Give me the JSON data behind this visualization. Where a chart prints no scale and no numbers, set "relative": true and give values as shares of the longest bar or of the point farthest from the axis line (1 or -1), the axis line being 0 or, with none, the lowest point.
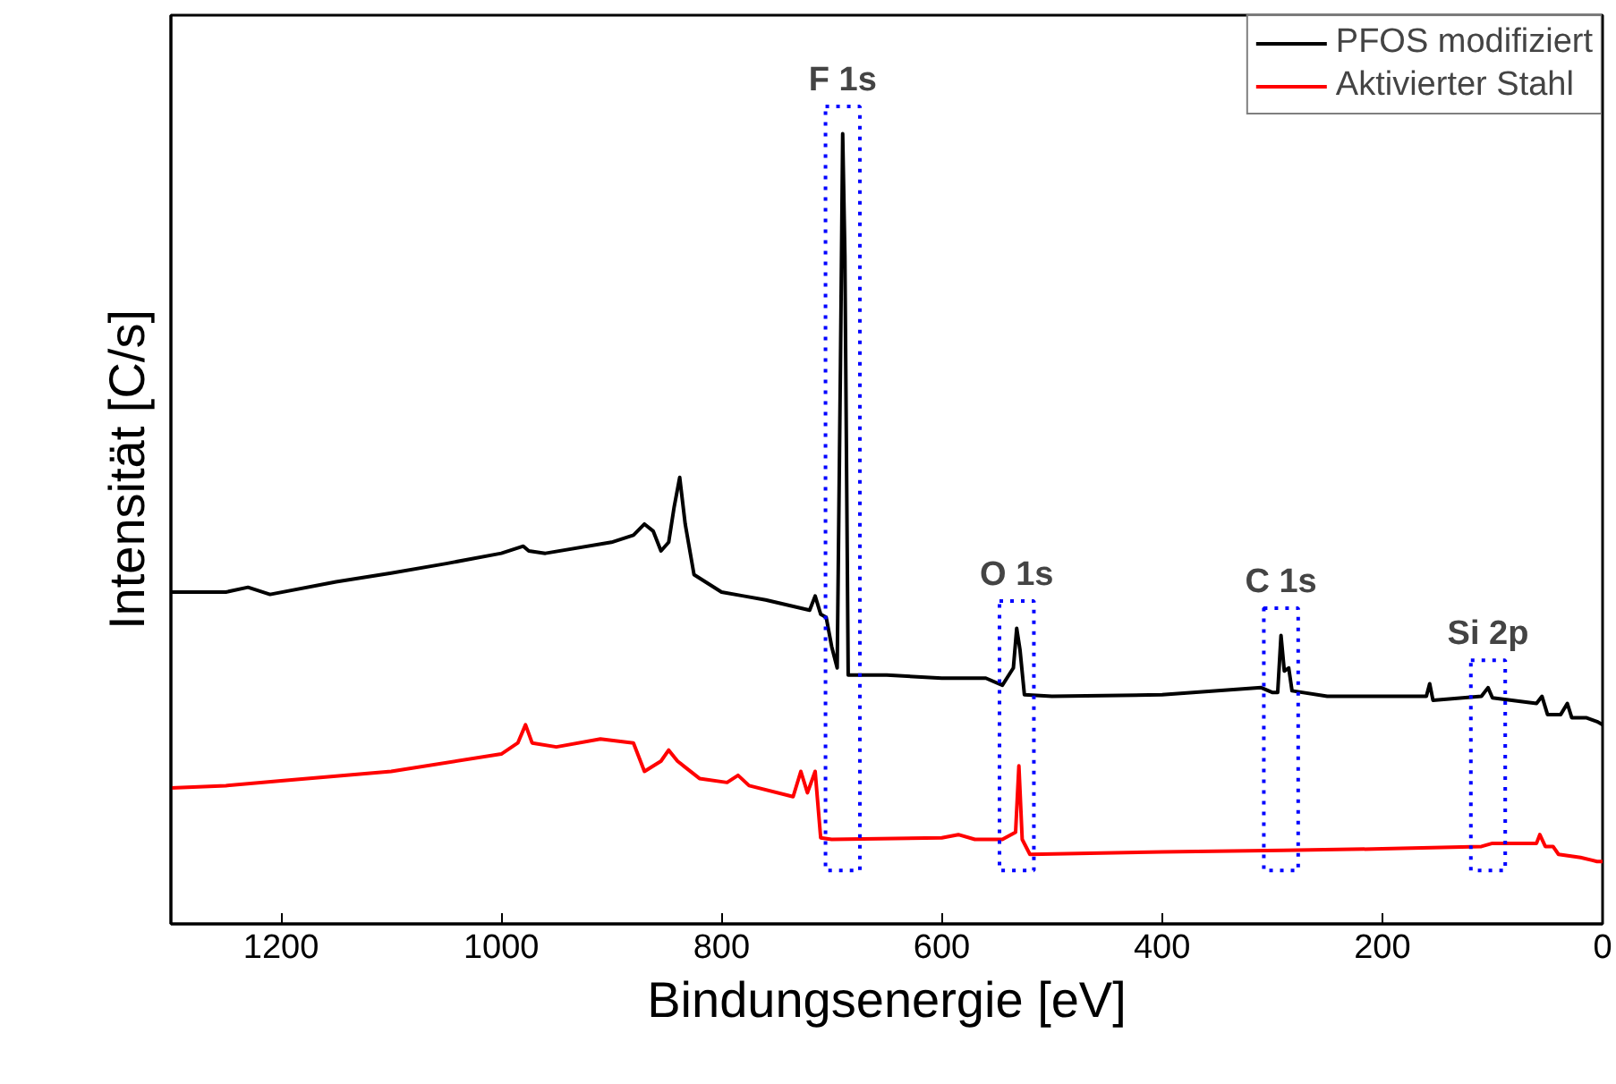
{
  "chart_data": {
    "type": "line",
    "relative": true,
    "xlabel": "Bindungsenergie [eV]",
    "ylabel": "Intensität [C/s]",
    "xlim": [
      1300,
      0
    ],
    "xticks": [
      1200,
      1000,
      800,
      600,
      400,
      200,
      0
    ],
    "grid": false,
    "legend": "top right",
    "marker": "none",
    "line_style": "solid",
    "series": [
      {
        "name": "PFOS modifiziert",
        "color": "#000000",
        "x": [
          1300,
          1250,
          1230,
          1210,
          1150,
          1100,
          1050,
          1000,
          980,
          975,
          960,
          900,
          880,
          870,
          862,
          855,
          848,
          843,
          838,
          833,
          825,
          800,
          780,
          760,
          720,
          715,
          710,
          705,
          700,
          695,
          692,
          690,
          688,
          685,
          650,
          600,
          560,
          545,
          535,
          532,
          529,
          525,
          500,
          400,
          310,
          300,
          295,
          292,
          289,
          285,
          282,
          250,
          160,
          157,
          154,
          110,
          104,
          100,
          60,
          55,
          50,
          38,
          32,
          28,
          15,
          5,
          0
        ],
        "values": [
          0.42,
          0.42,
          0.426,
          0.417,
          0.433,
          0.444,
          0.456,
          0.469,
          0.478,
          0.472,
          0.469,
          0.483,
          0.492,
          0.506,
          0.497,
          0.472,
          0.483,
          0.528,
          0.565,
          0.506,
          0.442,
          0.42,
          0.415,
          0.41,
          0.397,
          0.415,
          0.392,
          0.388,
          0.351,
          0.324,
          0.71,
          1.0,
          0.846,
          0.315,
          0.315,
          0.311,
          0.311,
          0.302,
          0.324,
          0.374,
          0.347,
          0.29,
          0.288,
          0.29,
          0.299,
          0.293,
          0.293,
          0.365,
          0.32,
          0.324,
          0.295,
          0.288,
          0.288,
          0.304,
          0.283,
          0.288,
          0.299,
          0.286,
          0.279,
          0.288,
          0.265,
          0.265,
          0.279,
          0.261,
          0.261,
          0.256,
          0.252
        ]
      },
      {
        "name": "Aktivierter Stahl",
        "color": "#ff0000",
        "x": [
          1300,
          1250,
          1200,
          1100,
          1000,
          985,
          978,
          972,
          950,
          910,
          880,
          870,
          855,
          848,
          840,
          820,
          795,
          785,
          775,
          735,
          728,
          722,
          715,
          710,
          700,
          600,
          585,
          570,
          545,
          533,
          530,
          527,
          520,
          400,
          290,
          200,
          110,
          100,
          60,
          57,
          52,
          45,
          40,
          20,
          5,
          0
        ],
        "values": [
          0.172,
          0.175,
          0.181,
          0.193,
          0.215,
          0.229,
          0.252,
          0.229,
          0.224,
          0.234,
          0.229,
          0.193,
          0.206,
          0.22,
          0.206,
          0.184,
          0.179,
          0.188,
          0.175,
          0.161,
          0.193,
          0.166,
          0.193,
          0.109,
          0.107,
          0.109,
          0.113,
          0.107,
          0.107,
          0.116,
          0.2,
          0.107,
          0.088,
          0.091,
          0.093,
          0.095,
          0.098,
          0.102,
          0.102,
          0.113,
          0.098,
          0.098,
          0.088,
          0.084,
          0.079,
          0.079
        ]
      }
    ],
    "annotations": [
      {
        "text": "F 1s",
        "x": 690,
        "y": 1.0
      },
      {
        "text": "O 1s",
        "x": 532,
        "y": 0.374
      },
      {
        "text": "C 1s",
        "x": 292,
        "y": 0.365
      },
      {
        "text": "Si 2p",
        "x": 104,
        "y": 0.299
      }
    ]
  }
}
